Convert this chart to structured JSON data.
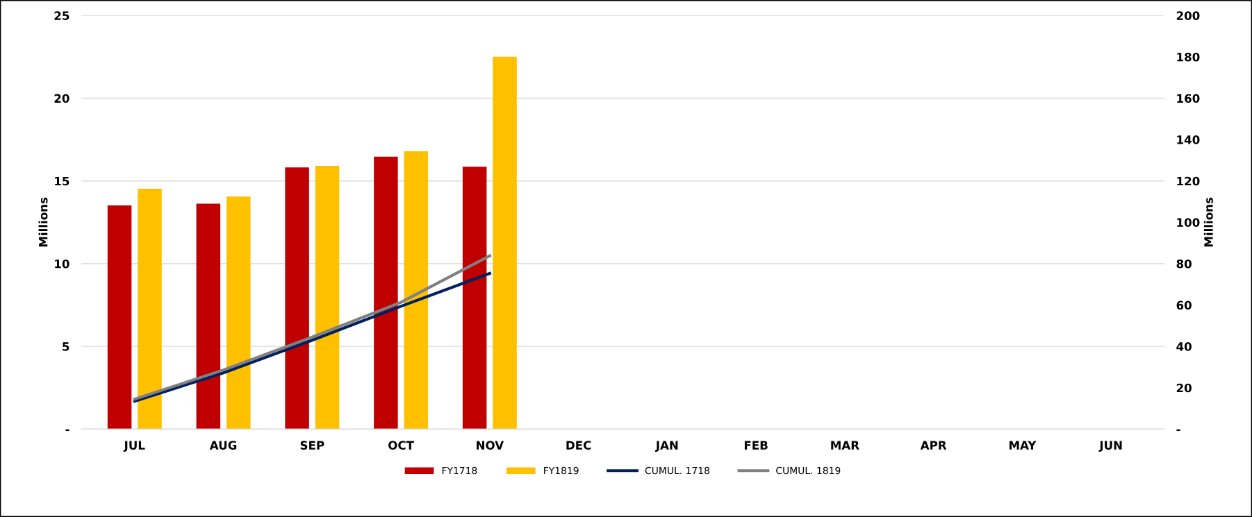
{
  "chart_data": {
    "type": "bar",
    "ylabel": "Millions",
    "y2label": "Millions",
    "categories": [
      "JUL",
      "AUG",
      "SEP",
      "OCT",
      "NOV",
      "DEC",
      "JAN",
      "FEB",
      "MAR",
      "APR",
      "MAY",
      "JUN"
    ],
    "series": [
      {
        "name": "FY1718",
        "color": "#c00000",
        "values": [
          13.52,
          13.63,
          15.82,
          16.47,
          15.86,
          null,
          null,
          null,
          null,
          null,
          null,
          null
        ]
      },
      {
        "name": "FY1819",
        "color": "#ffc000",
        "values": [
          14.53,
          14.06,
          15.91,
          16.79,
          22.51,
          null,
          null,
          null,
          null,
          null,
          null,
          null
        ]
      },
      {
        "name": "CUMUL. 1718",
        "type": "line",
        "axis": "y2",
        "color": "#002060",
        "values": [
          13.5,
          27.2,
          43.0,
          59.4,
          75.3,
          null,
          null,
          null,
          null,
          null,
          null,
          null
        ]
      },
      {
        "name": "CUMUL. 1819",
        "type": "line",
        "axis": "y2",
        "color": "#808080",
        "values": [
          14.5,
          28.6,
          44.5,
          61.3,
          83.8,
          null,
          null,
          null,
          null,
          null,
          null,
          null
        ]
      }
    ],
    "ylim": [
      0,
      25
    ],
    "yticks": [
      {
        "value": 0,
        "label": "-"
      },
      5,
      10,
      15,
      20,
      25
    ],
    "y2lim": [
      0,
      200
    ],
    "y2ticks": [
      {
        "value": 0,
        "label": "-"
      },
      20,
      40,
      60,
      80,
      100,
      120,
      140,
      160,
      180,
      200
    ],
    "grid": "y",
    "legend": "bottom"
  }
}
